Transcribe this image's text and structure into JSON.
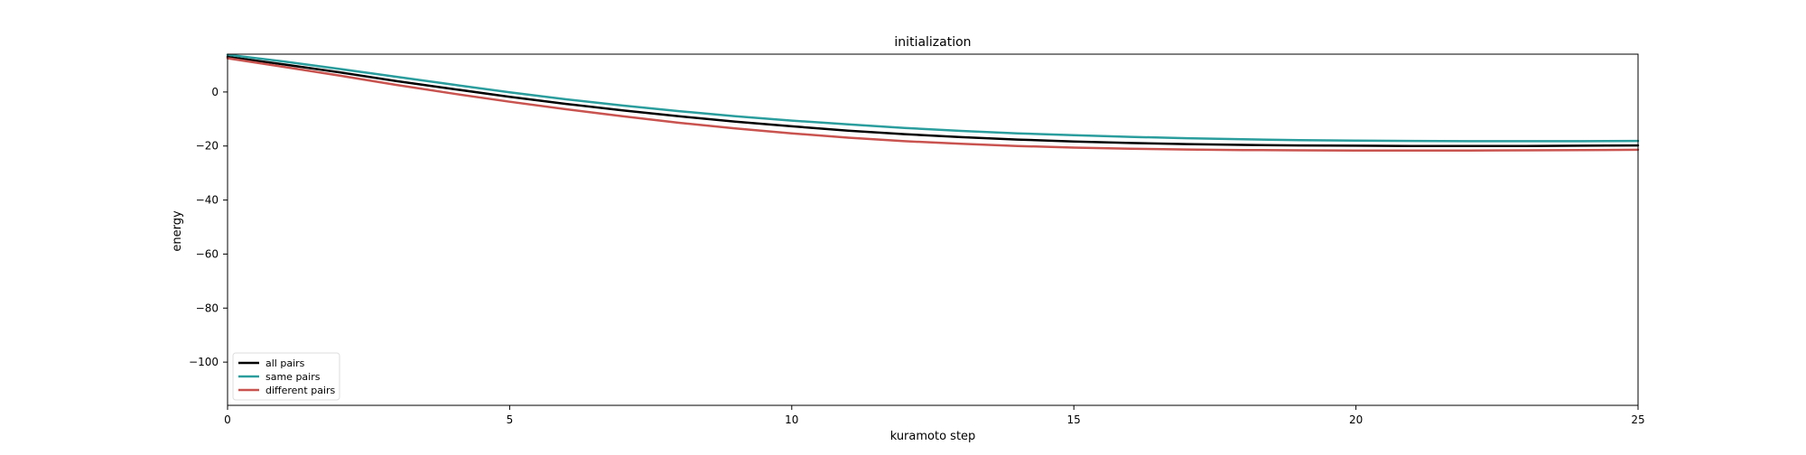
{
  "chart_data": {
    "type": "line",
    "title": "initialization",
    "xlabel": "kuramoto step",
    "ylabel": "energy",
    "xlim": [
      0,
      25
    ],
    "ylim": [
      -116,
      14
    ],
    "xticks": [
      0,
      5,
      10,
      15,
      20,
      25
    ],
    "yticks": [
      0,
      -20,
      -40,
      -60,
      -80,
      -100
    ],
    "grid": false,
    "legend_position": "lower-left",
    "x": [
      0,
      1,
      2,
      3,
      4,
      5,
      6,
      7,
      8,
      9,
      10,
      11,
      12,
      13,
      14,
      15,
      16,
      17,
      18,
      19,
      20,
      21,
      22,
      23,
      24,
      25
    ],
    "series": [
      {
        "name": "all pairs",
        "color": "#000000",
        "values": [
          13.0,
          10.2,
          7.2,
          4.0,
          1.1,
          -1.8,
          -4.4,
          -6.8,
          -9.0,
          -11.0,
          -12.7,
          -14.3,
          -15.6,
          -16.7,
          -17.6,
          -18.3,
          -18.9,
          -19.3,
          -19.6,
          -19.8,
          -19.9,
          -20.0,
          -20.0,
          -20.0,
          -19.9,
          -19.8
        ]
      },
      {
        "name": "same pairs",
        "color": "#2a9d9d",
        "values": [
          13.8,
          11.3,
          8.5,
          5.6,
          2.7,
          -0.1,
          -2.7,
          -5.0,
          -7.1,
          -9.0,
          -10.6,
          -12.0,
          -13.3,
          -14.4,
          -15.3,
          -16.0,
          -16.6,
          -17.1,
          -17.5,
          -17.8,
          -18.0,
          -18.1,
          -18.2,
          -18.2,
          -18.2,
          -18.1
        ]
      },
      {
        "name": "different pairs",
        "color": "#c9534f",
        "values": [
          12.5,
          9.3,
          6.0,
          2.6,
          -0.6,
          -3.6,
          -6.4,
          -9.0,
          -11.4,
          -13.5,
          -15.3,
          -16.9,
          -18.2,
          -19.2,
          -20.0,
          -20.6,
          -21.0,
          -21.3,
          -21.5,
          -21.6,
          -21.7,
          -21.7,
          -21.7,
          -21.6,
          -21.5,
          -21.4
        ]
      }
    ]
  }
}
